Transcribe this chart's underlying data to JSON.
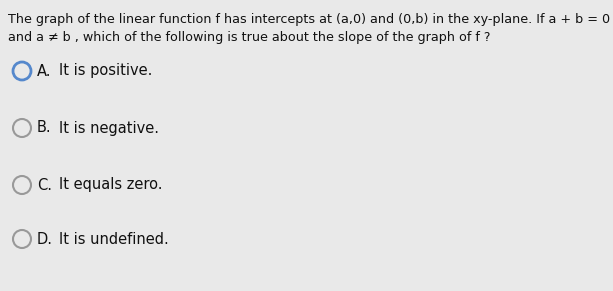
{
  "background_color": "#e9e9e9",
  "question_line1": "The graph of the linear function f has intercepts at (a,0) and (0,b) in the xy-plane. If a + b = 0",
  "question_line2": "and a ≠ b , which of the following is true about the slope of the graph of f ?",
  "options": [
    {
      "label": "A.",
      "text": "It is positive.",
      "selected": true
    },
    {
      "label": "B.",
      "text": "It is negative.",
      "selected": false
    },
    {
      "label": "C.",
      "text": "It equals zero.",
      "selected": false
    },
    {
      "label": "D.",
      "text": "It is undefined.",
      "selected": false
    }
  ],
  "selected_circle_color": "#5588cc",
  "unselected_circle_color": "#999999",
  "text_color": "#111111",
  "question_fontsize": 9.2,
  "option_fontsize": 10.5
}
